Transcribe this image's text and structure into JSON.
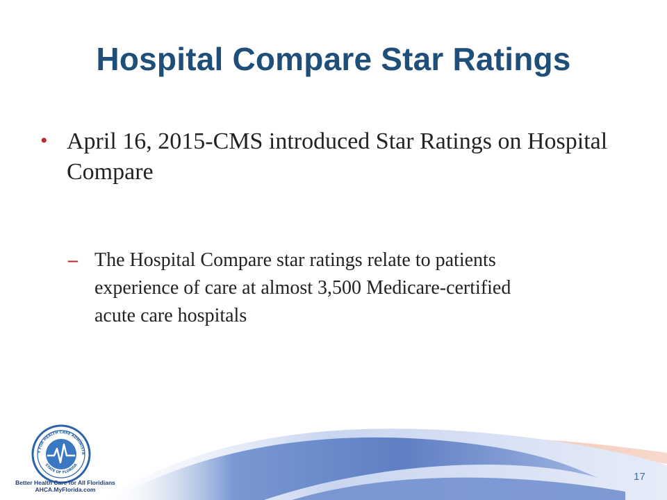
{
  "slide": {
    "title": "Hospital Compare Star Ratings",
    "bullets": [
      {
        "marker": "•",
        "text": "April 16, 2015-CMS introduced Star Ratings on Hospital Compare",
        "sub_bullets": [
          {
            "marker": "–",
            "text": "The Hospital Compare star ratings relate to patients experience of care at almost 3,500 Medicare-certified acute care hospitals"
          }
        ]
      }
    ],
    "page_number": "17"
  },
  "footer": {
    "logo": {
      "icon": "ahca-seal-icon",
      "ring_text": "AGENCY FOR HEALTH CARE ADMINISTRATION",
      "bottom_text": "STATE OF FLORIDA"
    },
    "tagline_1": "Better Health Care for All Floridians",
    "tagline_2": "AHCA.MyFlorida.com"
  },
  "colors": {
    "title": "#1f4e79",
    "bullet_marker": "#c0272d",
    "body_text": "#222222",
    "swoosh_blue": "#5f7fc4",
    "swoosh_peach": "#f2c2b0"
  }
}
